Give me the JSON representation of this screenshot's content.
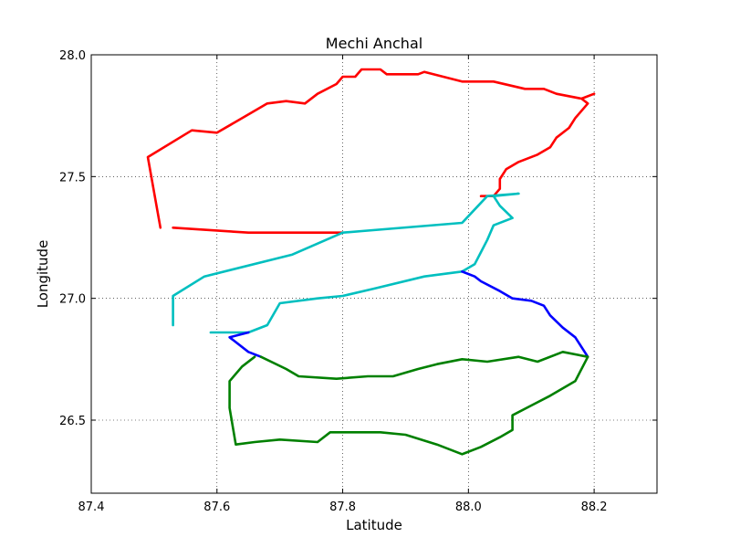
{
  "chart_data": {
    "type": "line",
    "title": "Mechi Anchal",
    "xlabel": "Latitude",
    "ylabel": "Longitude",
    "xlim": [
      87.4,
      88.3
    ],
    "ylim": [
      26.2,
      28.0
    ],
    "xticks": [
      87.4,
      87.6,
      87.8,
      88.0,
      88.2
    ],
    "xtick_labels": [
      "87.4",
      "87.6",
      "87.8",
      "88.0",
      "88.2"
    ],
    "yticks": [
      26.5,
      27.0,
      27.5,
      28.0
    ],
    "ytick_labels": [
      "26.5",
      "27.0",
      "27.5",
      "28.0"
    ],
    "grid": true,
    "series": [
      {
        "color": "#ff0000",
        "points": [
          [
            87.51,
            27.29
          ],
          [
            87.49,
            27.58
          ],
          [
            87.56,
            27.69
          ],
          [
            87.6,
            27.68
          ],
          [
            87.68,
            27.8
          ],
          [
            87.71,
            27.81
          ],
          [
            87.74,
            27.8
          ],
          [
            87.76,
            27.84
          ],
          [
            87.79,
            27.88
          ],
          [
            87.8,
            27.91
          ],
          [
            87.82,
            27.91
          ],
          [
            87.83,
            27.94
          ],
          [
            87.86,
            27.94
          ],
          [
            87.87,
            27.92
          ],
          [
            87.92,
            27.92
          ],
          [
            87.93,
            27.93
          ],
          [
            87.99,
            27.89
          ],
          [
            88.04,
            27.89
          ],
          [
            88.09,
            27.86
          ],
          [
            88.12,
            27.86
          ],
          [
            88.14,
            27.84
          ],
          [
            88.18,
            27.82
          ],
          [
            88.2,
            27.84
          ],
          [
            88.18,
            27.82
          ],
          [
            88.19,
            27.8
          ],
          [
            88.18,
            27.77
          ],
          [
            88.17,
            27.74
          ],
          [
            88.16,
            27.7
          ],
          [
            88.14,
            27.66
          ],
          [
            88.13,
            27.62
          ],
          [
            88.11,
            27.59
          ],
          [
            88.08,
            27.56
          ],
          [
            88.06,
            27.53
          ],
          [
            88.05,
            27.49
          ],
          [
            88.05,
            27.45
          ],
          [
            88.04,
            27.42
          ],
          [
            88.02,
            27.42
          ]
        ]
      },
      {
        "color": "#ff0000",
        "points": [
          [
            87.53,
            27.29
          ],
          [
            87.65,
            27.27
          ],
          [
            87.8,
            27.27
          ]
        ]
      },
      {
        "color": "#00bfbf",
        "points": [
          [
            87.8,
            27.27
          ],
          [
            87.99,
            27.31
          ],
          [
            88.03,
            27.42
          ],
          [
            88.08,
            27.43
          ],
          [
            88.04,
            27.42
          ],
          [
            88.05,
            27.38
          ],
          [
            88.07,
            27.33
          ],
          [
            88.04,
            27.3
          ],
          [
            88.03,
            27.24
          ],
          [
            88.02,
            27.19
          ],
          [
            88.01,
            27.14
          ],
          [
            87.99,
            27.11
          ]
        ]
      },
      {
        "color": "#00bfbf",
        "points": [
          [
            87.53,
            26.89
          ],
          [
            87.53,
            27.01
          ],
          [
            87.58,
            27.09
          ],
          [
            87.72,
            27.18
          ],
          [
            87.8,
            27.27
          ]
        ]
      },
      {
        "color": "#00bfbf",
        "points": [
          [
            87.99,
            27.11
          ],
          [
            87.93,
            27.09
          ],
          [
            87.85,
            27.04
          ],
          [
            87.8,
            27.01
          ],
          [
            87.76,
            27.0
          ],
          [
            87.7,
            26.98
          ],
          [
            87.68,
            26.89
          ],
          [
            87.65,
            26.86
          ],
          [
            87.59,
            26.86
          ]
        ]
      },
      {
        "color": "#0000ff",
        "points": [
          [
            87.99,
            27.11
          ],
          [
            88.01,
            27.09
          ],
          [
            88.02,
            27.07
          ],
          [
            88.05,
            27.03
          ],
          [
            88.07,
            27.0
          ],
          [
            88.1,
            26.99
          ],
          [
            88.12,
            26.97
          ],
          [
            88.13,
            26.93
          ],
          [
            88.15,
            26.88
          ],
          [
            88.17,
            26.84
          ],
          [
            88.19,
            26.76
          ]
        ]
      },
      {
        "color": "#0000ff",
        "points": [
          [
            87.65,
            26.86
          ],
          [
            87.62,
            26.84
          ],
          [
            87.65,
            26.78
          ],
          [
            87.67,
            26.76
          ]
        ]
      },
      {
        "color": "#008000",
        "points": [
          [
            87.67,
            26.76
          ],
          [
            87.71,
            26.71
          ],
          [
            87.73,
            26.68
          ],
          [
            87.79,
            26.67
          ],
          [
            87.84,
            26.68
          ],
          [
            87.88,
            26.68
          ],
          [
            87.92,
            26.71
          ],
          [
            87.95,
            26.73
          ],
          [
            87.99,
            26.75
          ],
          [
            88.03,
            26.74
          ],
          [
            88.08,
            26.76
          ],
          [
            88.11,
            26.74
          ],
          [
            88.15,
            26.78
          ],
          [
            88.19,
            26.76
          ],
          [
            88.17,
            26.66
          ],
          [
            88.13,
            26.6
          ],
          [
            88.1,
            26.56
          ],
          [
            88.07,
            26.52
          ],
          [
            88.07,
            26.46
          ],
          [
            88.05,
            26.43
          ],
          [
            88.02,
            26.39
          ],
          [
            87.99,
            26.36
          ],
          [
            87.95,
            26.4
          ],
          [
            87.9,
            26.44
          ],
          [
            87.86,
            26.45
          ],
          [
            87.82,
            26.45
          ],
          [
            87.78,
            26.45
          ],
          [
            87.76,
            26.41
          ],
          [
            87.7,
            26.42
          ],
          [
            87.66,
            26.41
          ],
          [
            87.63,
            26.4
          ],
          [
            87.62,
            26.55
          ],
          [
            87.62,
            26.66
          ],
          [
            87.64,
            26.72
          ],
          [
            87.66,
            26.76
          ]
        ]
      }
    ]
  }
}
